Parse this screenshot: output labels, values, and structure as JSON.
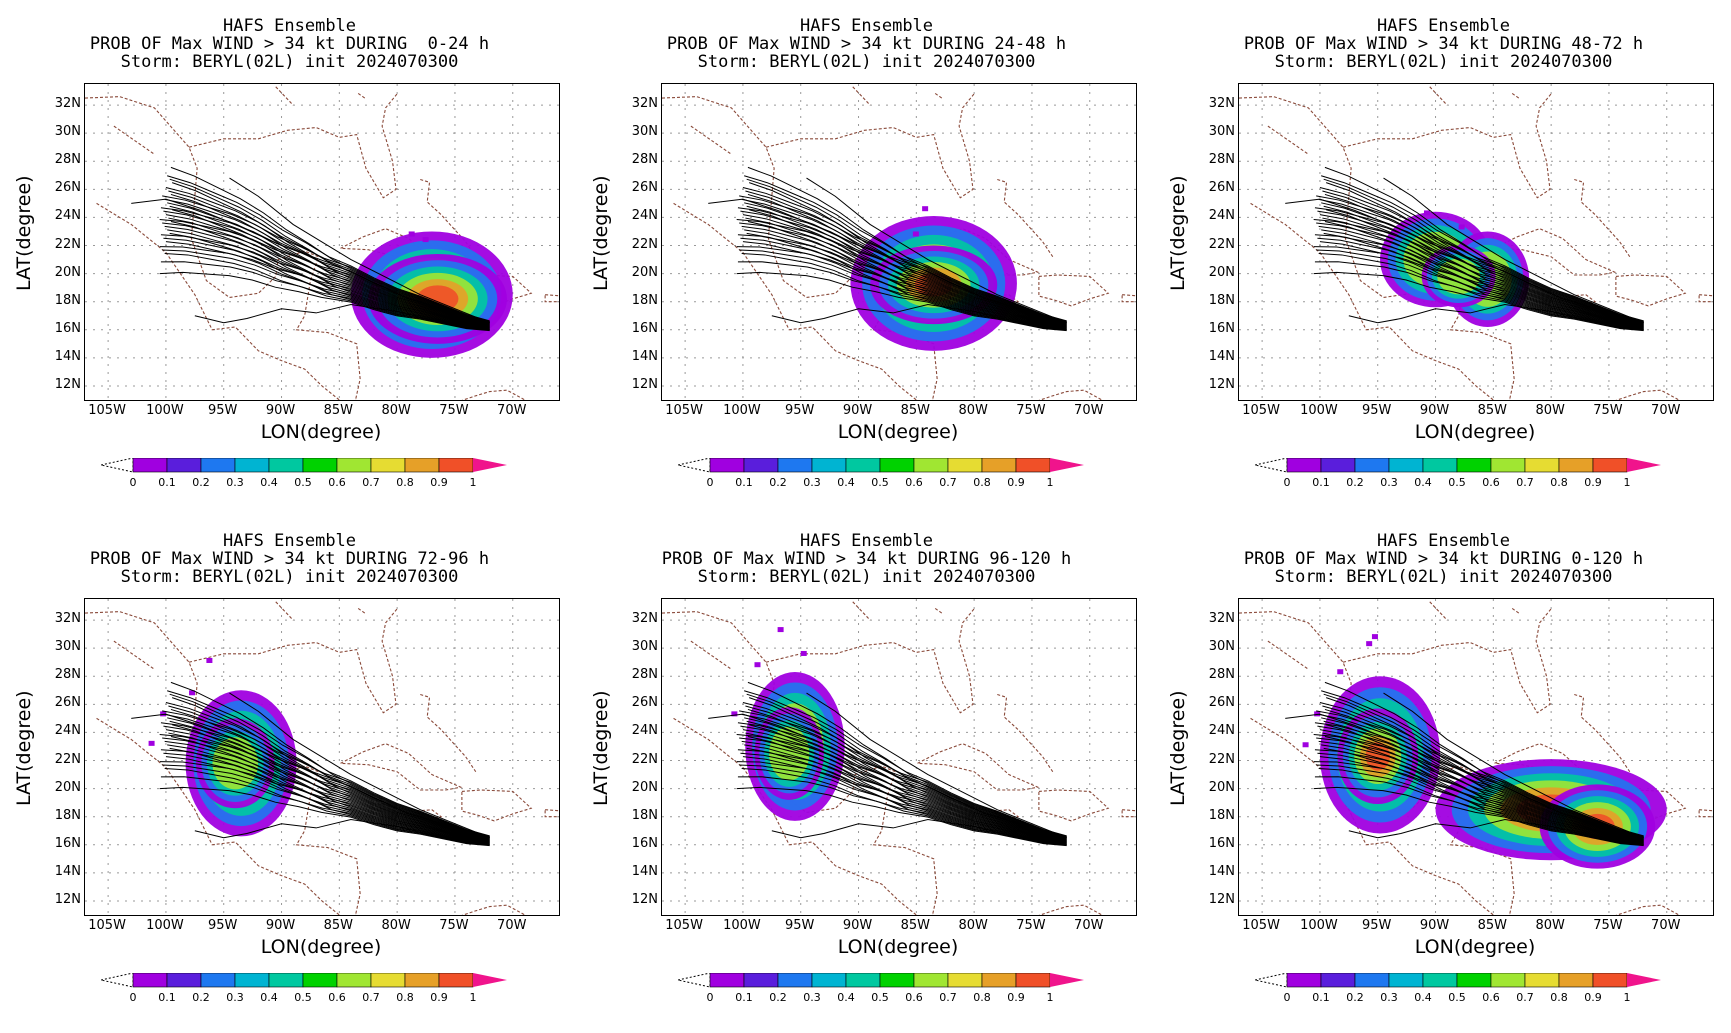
{
  "panels": [
    {
      "line1": "HAFS Ensemble",
      "line2": "PROB OF Max WIND > 34 kt DURING  0-24 h",
      "line3": "Storm: BERYL(02L) init 2024070300",
      "blob": "p1"
    },
    {
      "line1": "HAFS Ensemble",
      "line2": "PROB OF Max WIND > 34 kt DURING 24-48 h",
      "line3": "Storm: BERYL(02L) init 2024070300",
      "blob": "p2"
    },
    {
      "line1": "HAFS Ensemble",
      "line2": "PROB OF Max WIND > 34 kt DURING 48-72 h",
      "line3": "Storm: BERYL(02L) init 2024070300",
      "blob": "p3"
    },
    {
      "line1": "HAFS Ensemble",
      "line2": "PROB OF Max WIND > 34 kt DURING 72-96 h",
      "line3": "Storm: BERYL(02L) init 2024070300",
      "blob": "p4"
    },
    {
      "line1": "HAFS Ensemble",
      "line2": "PROB OF Max WIND > 34 kt DURING 96-120 h",
      "line3": "Storm: BERYL(02L) init 2024070300",
      "blob": "p5"
    },
    {
      "line1": "HAFS Ensemble",
      "line2": "PROB OF Max WIND > 34 kt DURING 0-120 h",
      "line3": "Storm: BERYL(02L) init 2024070300",
      "blob": "p6"
    }
  ],
  "axes": {
    "xlabel": "LON(degree)",
    "ylabel": "LAT(degree)",
    "lat_ticks": [
      "32N",
      "30N",
      "28N",
      "26N",
      "24N",
      "22N",
      "20N",
      "18N",
      "16N",
      "14N",
      "12N"
    ],
    "lon_ticks": [
      "105W",
      "100W",
      "95W",
      "90W",
      "85W",
      "80W",
      "75W",
      "70W"
    ],
    "lon_range": [
      -107,
      -66
    ],
    "lat_range": [
      11,
      33.5
    ]
  },
  "colorbar": {
    "labels": [
      "0",
      "0.1",
      "0.2",
      "0.3",
      "0.4",
      "0.5",
      "0.6",
      "0.7",
      "0.8",
      "0.9",
      "1"
    ],
    "colors": [
      "#a000e0",
      "#5a1edc",
      "#1e78f0",
      "#00b4d2",
      "#00c8a0",
      "#00d200",
      "#a0e632",
      "#e6dc32",
      "#e6a028",
      "#f05028"
    ],
    "over_color": "#f0148c"
  }
}
